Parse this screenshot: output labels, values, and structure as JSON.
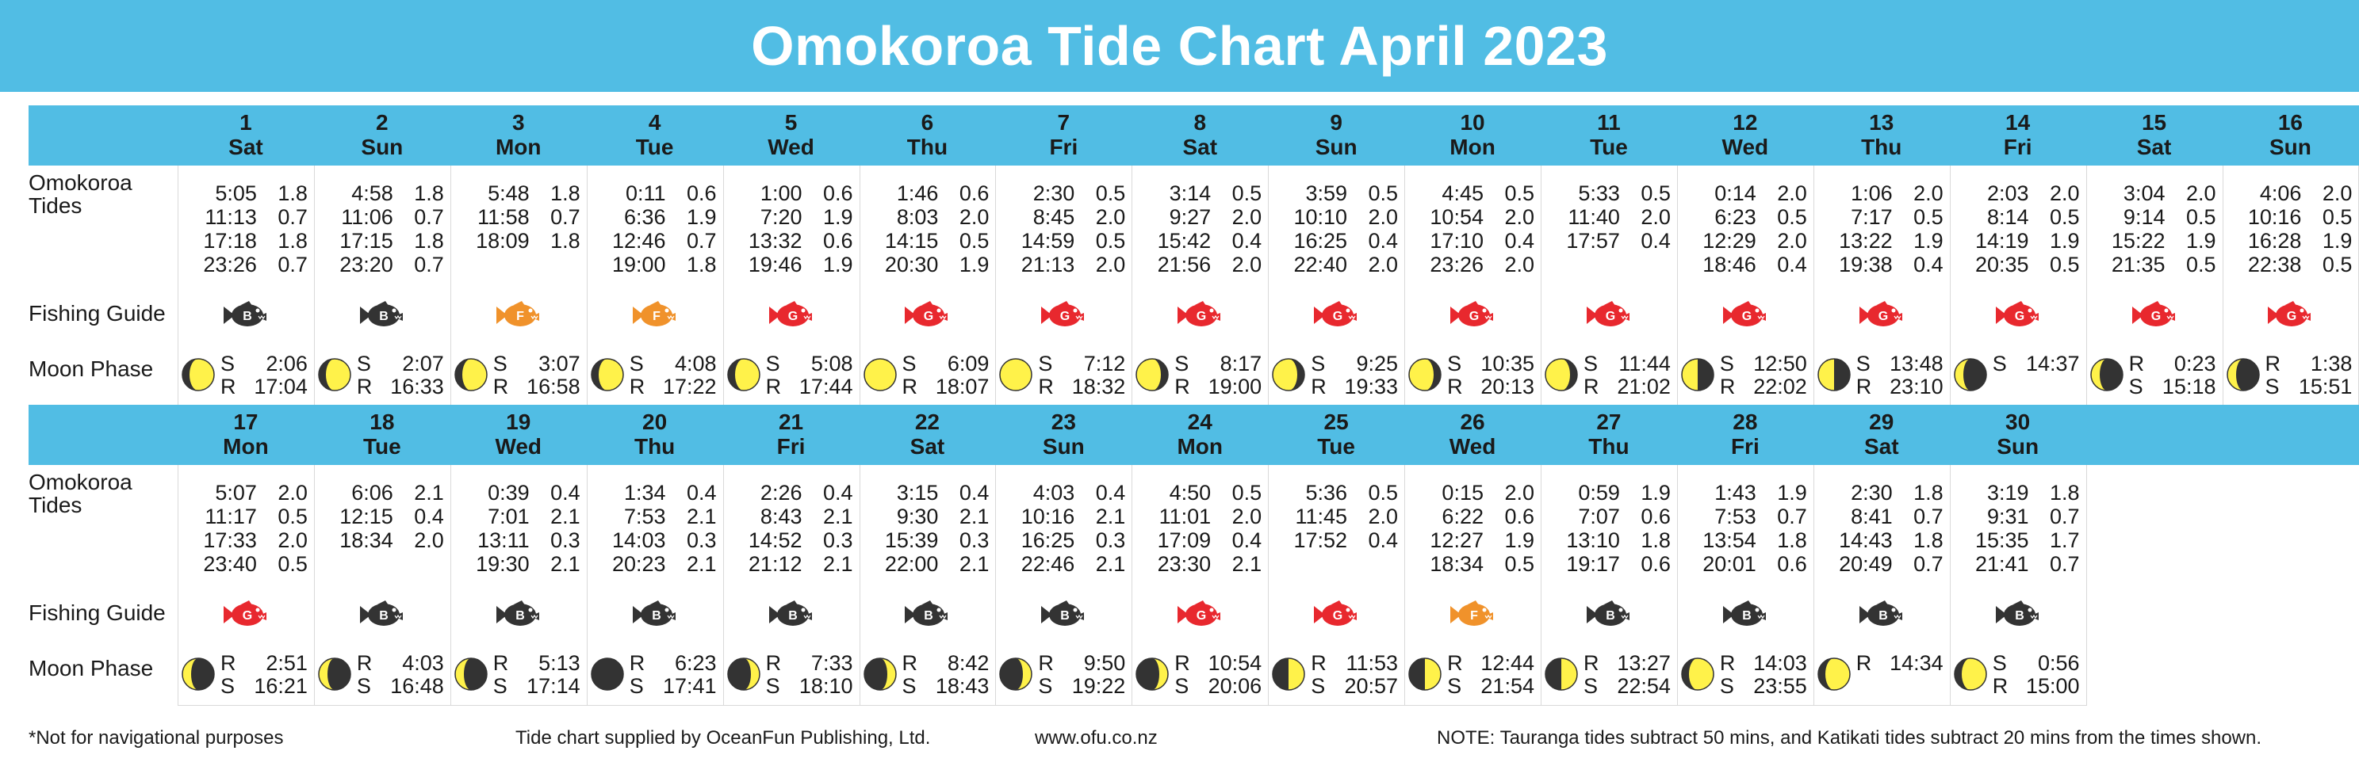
{
  "title": "Omokoroa Tide Chart April 2023",
  "row_labels": {
    "tides": "Omokoroa Tides",
    "fishing": "Fishing Guide",
    "moon": "Moon Phase"
  },
  "fish_colors": {
    "B": "#333333",
    "F": "#f0922b",
    "G": "#e8282e"
  },
  "moon_colors": {
    "light": "#fff24a",
    "dark": "#333333"
  },
  "weeks": [
    [
      {
        "day": "1",
        "dow": "Sat",
        "tides": [
          [
            "5:05",
            "1.8"
          ],
          [
            "11:13",
            "0.7"
          ],
          [
            "17:18",
            "1.8"
          ],
          [
            "23:26",
            "0.7"
          ]
        ],
        "fish": "B",
        "moon": "waxing-gibbous",
        "moon_lines": [
          [
            "S",
            "2:06"
          ],
          [
            "R",
            "17:04"
          ]
        ]
      },
      {
        "day": "2",
        "dow": "Sun",
        "tides": [
          [
            "4:58",
            "1.8"
          ],
          [
            "11:06",
            "0.7"
          ],
          [
            "17:15",
            "1.8"
          ],
          [
            "23:20",
            "0.7"
          ]
        ],
        "fish": "B",
        "moon": "waxing-gibbous",
        "moon_lines": [
          [
            "S",
            "2:07"
          ],
          [
            "R",
            "16:33"
          ]
        ]
      },
      {
        "day": "3",
        "dow": "Mon",
        "tides": [
          [
            "5:48",
            "1.8"
          ],
          [
            "11:58",
            "0.7"
          ],
          [
            "18:09",
            "1.8"
          ]
        ],
        "fish": "F",
        "moon": "waxing-gibbous",
        "moon_lines": [
          [
            "S",
            "3:07"
          ],
          [
            "R",
            "16:58"
          ]
        ]
      },
      {
        "day": "4",
        "dow": "Tue",
        "tides": [
          [
            "0:11",
            "0.6"
          ],
          [
            "6:36",
            "1.9"
          ],
          [
            "12:46",
            "0.7"
          ],
          [
            "19:00",
            "1.8"
          ]
        ],
        "fish": "F",
        "moon": "waxing-gibbous",
        "moon_lines": [
          [
            "S",
            "4:08"
          ],
          [
            "R",
            "17:22"
          ]
        ]
      },
      {
        "day": "5",
        "dow": "Wed",
        "tides": [
          [
            "1:00",
            "0.6"
          ],
          [
            "7:20",
            "1.9"
          ],
          [
            "13:32",
            "0.6"
          ],
          [
            "19:46",
            "1.9"
          ]
        ],
        "fish": "G",
        "moon": "waxing-gibbous",
        "moon_lines": [
          [
            "S",
            "5:08"
          ],
          [
            "R",
            "17:44"
          ]
        ]
      },
      {
        "day": "6",
        "dow": "Thu",
        "tides": [
          [
            "1:46",
            "0.6"
          ],
          [
            "8:03",
            "2.0"
          ],
          [
            "14:15",
            "0.5"
          ],
          [
            "20:30",
            "1.9"
          ]
        ],
        "fish": "G",
        "moon": "full",
        "moon_lines": [
          [
            "S",
            "6:09"
          ],
          [
            "R",
            "18:07"
          ]
        ]
      },
      {
        "day": "7",
        "dow": "Fri",
        "tides": [
          [
            "2:30",
            "0.5"
          ],
          [
            "8:45",
            "2.0"
          ],
          [
            "14:59",
            "0.5"
          ],
          [
            "21:13",
            "2.0"
          ]
        ],
        "fish": "G",
        "moon": "full",
        "moon_lines": [
          [
            "S",
            "7:12"
          ],
          [
            "R",
            "18:32"
          ]
        ]
      },
      {
        "day": "8",
        "dow": "Sat",
        "tides": [
          [
            "3:14",
            "0.5"
          ],
          [
            "9:27",
            "2.0"
          ],
          [
            "15:42",
            "0.4"
          ],
          [
            "21:56",
            "2.0"
          ]
        ],
        "fish": "G",
        "moon": "waning-gibbous",
        "moon_lines": [
          [
            "S",
            "8:17"
          ],
          [
            "R",
            "19:00"
          ]
        ]
      },
      {
        "day": "9",
        "dow": "Sun",
        "tides": [
          [
            "3:59",
            "0.5"
          ],
          [
            "10:10",
            "2.0"
          ],
          [
            "16:25",
            "0.4"
          ],
          [
            "22:40",
            "2.0"
          ]
        ],
        "fish": "G",
        "moon": "waning-gibbous",
        "moon_lines": [
          [
            "S",
            "9:25"
          ],
          [
            "R",
            "19:33"
          ]
        ]
      },
      {
        "day": "10",
        "dow": "Mon",
        "tides": [
          [
            "4:45",
            "0.5"
          ],
          [
            "10:54",
            "2.0"
          ],
          [
            "17:10",
            "0.4"
          ],
          [
            "23:26",
            "2.0"
          ]
        ],
        "fish": "G",
        "moon": "waning-gibbous",
        "moon_lines": [
          [
            "S",
            "10:35"
          ],
          [
            "R",
            "20:13"
          ]
        ]
      },
      {
        "day": "11",
        "dow": "Tue",
        "tides": [
          [
            "5:33",
            "0.5"
          ],
          [
            "11:40",
            "2.0"
          ],
          [
            "17:57",
            "0.4"
          ]
        ],
        "fish": "G",
        "moon": "waning-gibbous",
        "moon_lines": [
          [
            "S",
            "11:44"
          ],
          [
            "R",
            "21:02"
          ]
        ]
      },
      {
        "day": "12",
        "dow": "Wed",
        "tides": [
          [
            "0:14",
            "2.0"
          ],
          [
            "6:23",
            "0.5"
          ],
          [
            "12:29",
            "2.0"
          ],
          [
            "18:46",
            "0.4"
          ]
        ],
        "fish": "G",
        "moon": "last-quarter",
        "moon_lines": [
          [
            "S",
            "12:50"
          ],
          [
            "R",
            "22:02"
          ]
        ]
      },
      {
        "day": "13",
        "dow": "Thu",
        "tides": [
          [
            "1:06",
            "2.0"
          ],
          [
            "7:17",
            "0.5"
          ],
          [
            "13:22",
            "1.9"
          ],
          [
            "19:38",
            "0.4"
          ]
        ],
        "fish": "G",
        "moon": "last-quarter",
        "moon_lines": [
          [
            "S",
            "13:48"
          ],
          [
            "R",
            "23:10"
          ]
        ]
      },
      {
        "day": "14",
        "dow": "Fri",
        "tides": [
          [
            "2:03",
            "2.0"
          ],
          [
            "8:14",
            "0.5"
          ],
          [
            "14:19",
            "1.9"
          ],
          [
            "20:35",
            "0.5"
          ]
        ],
        "fish": "G",
        "moon": "waning-crescent",
        "moon_lines": [
          [
            "S",
            "14:37"
          ]
        ]
      },
      {
        "day": "15",
        "dow": "Sat",
        "tides": [
          [
            "3:04",
            "2.0"
          ],
          [
            "9:14",
            "0.5"
          ],
          [
            "15:22",
            "1.9"
          ],
          [
            "21:35",
            "0.5"
          ]
        ],
        "fish": "G",
        "moon": "waning-crescent",
        "moon_lines": [
          [
            "R",
            "0:23"
          ],
          [
            "S",
            "15:18"
          ]
        ]
      },
      {
        "day": "16",
        "dow": "Sun",
        "tides": [
          [
            "4:06",
            "2.0"
          ],
          [
            "10:16",
            "0.5"
          ],
          [
            "16:28",
            "1.9"
          ],
          [
            "22:38",
            "0.5"
          ]
        ],
        "fish": "G",
        "moon": "waning-crescent",
        "moon_lines": [
          [
            "R",
            "1:38"
          ],
          [
            "S",
            "15:51"
          ]
        ]
      }
    ],
    [
      {
        "day": "17",
        "dow": "Mon",
        "tides": [
          [
            "5:07",
            "2.0"
          ],
          [
            "11:17",
            "0.5"
          ],
          [
            "17:33",
            "2.0"
          ],
          [
            "23:40",
            "0.5"
          ]
        ],
        "fish": "G",
        "moon": "waning-crescent",
        "moon_lines": [
          [
            "R",
            "2:51"
          ],
          [
            "S",
            "16:21"
          ]
        ]
      },
      {
        "day": "18",
        "dow": "Tue",
        "tides": [
          [
            "6:06",
            "2.1"
          ],
          [
            "12:15",
            "0.4"
          ],
          [
            "18:34",
            "2.0"
          ]
        ],
        "fish": "B",
        "moon": "waning-crescent",
        "moon_lines": [
          [
            "R",
            "4:03"
          ],
          [
            "S",
            "16:48"
          ]
        ]
      },
      {
        "day": "19",
        "dow": "Wed",
        "tides": [
          [
            "0:39",
            "0.4"
          ],
          [
            "7:01",
            "2.1"
          ],
          [
            "13:11",
            "0.3"
          ],
          [
            "19:30",
            "2.1"
          ]
        ],
        "fish": "B",
        "moon": "waning-crescent",
        "moon_lines": [
          [
            "R",
            "5:13"
          ],
          [
            "S",
            "17:14"
          ]
        ]
      },
      {
        "day": "20",
        "dow": "Thu",
        "tides": [
          [
            "1:34",
            "0.4"
          ],
          [
            "7:53",
            "2.1"
          ],
          [
            "14:03",
            "0.3"
          ],
          [
            "20:23",
            "2.1"
          ]
        ],
        "fish": "B",
        "moon": "new",
        "moon_lines": [
          [
            "R",
            "6:23"
          ],
          [
            "S",
            "17:41"
          ]
        ]
      },
      {
        "day": "21",
        "dow": "Fri",
        "tides": [
          [
            "2:26",
            "0.4"
          ],
          [
            "8:43",
            "2.1"
          ],
          [
            "14:52",
            "0.3"
          ],
          [
            "21:12",
            "2.1"
          ]
        ],
        "fish": "B",
        "moon": "waxing-crescent",
        "moon_lines": [
          [
            "R",
            "7:33"
          ],
          [
            "S",
            "18:10"
          ]
        ]
      },
      {
        "day": "22",
        "dow": "Sat",
        "tides": [
          [
            "3:15",
            "0.4"
          ],
          [
            "9:30",
            "2.1"
          ],
          [
            "15:39",
            "0.3"
          ],
          [
            "22:00",
            "2.1"
          ]
        ],
        "fish": "B",
        "moon": "waxing-crescent",
        "moon_lines": [
          [
            "R",
            "8:42"
          ],
          [
            "S",
            "18:43"
          ]
        ]
      },
      {
        "day": "23",
        "dow": "Sun",
        "tides": [
          [
            "4:03",
            "0.4"
          ],
          [
            "10:16",
            "2.1"
          ],
          [
            "16:25",
            "0.3"
          ],
          [
            "22:46",
            "2.1"
          ]
        ],
        "fish": "B",
        "moon": "waxing-crescent",
        "moon_lines": [
          [
            "R",
            "9:50"
          ],
          [
            "S",
            "19:22"
          ]
        ]
      },
      {
        "day": "24",
        "dow": "Mon",
        "tides": [
          [
            "4:50",
            "0.5"
          ],
          [
            "11:01",
            "2.0"
          ],
          [
            "17:09",
            "0.4"
          ],
          [
            "23:30",
            "2.1"
          ]
        ],
        "fish": "G",
        "moon": "waxing-crescent",
        "moon_lines": [
          [
            "R",
            "10:54"
          ],
          [
            "S",
            "20:06"
          ]
        ]
      },
      {
        "day": "25",
        "dow": "Tue",
        "tides": [
          [
            "5:36",
            "0.5"
          ],
          [
            "11:45",
            "2.0"
          ],
          [
            "17:52",
            "0.4"
          ]
        ],
        "fish": "G",
        "moon": "first-quarter",
        "moon_lines": [
          [
            "R",
            "11:53"
          ],
          [
            "S",
            "20:57"
          ]
        ]
      },
      {
        "day": "26",
        "dow": "Wed",
        "tides": [
          [
            "0:15",
            "2.0"
          ],
          [
            "6:22",
            "0.6"
          ],
          [
            "12:27",
            "1.9"
          ],
          [
            "18:34",
            "0.5"
          ]
        ],
        "fish": "F",
        "moon": "first-quarter",
        "moon_lines": [
          [
            "R",
            "12:44"
          ],
          [
            "S",
            "21:54"
          ]
        ]
      },
      {
        "day": "27",
        "dow": "Thu",
        "tides": [
          [
            "0:59",
            "1.9"
          ],
          [
            "7:07",
            "0.6"
          ],
          [
            "13:10",
            "1.8"
          ],
          [
            "19:17",
            "0.6"
          ]
        ],
        "fish": "B",
        "moon": "first-quarter",
        "moon_lines": [
          [
            "R",
            "13:27"
          ],
          [
            "S",
            "22:54"
          ]
        ]
      },
      {
        "day": "28",
        "dow": "Fri",
        "tides": [
          [
            "1:43",
            "1.9"
          ],
          [
            "7:53",
            "0.7"
          ],
          [
            "13:54",
            "1.8"
          ],
          [
            "20:01",
            "0.6"
          ]
        ],
        "fish": "B",
        "moon": "waxing-gibbous",
        "moon_lines": [
          [
            "R",
            "14:03"
          ],
          [
            "S",
            "23:55"
          ]
        ]
      },
      {
        "day": "29",
        "dow": "Sat",
        "tides": [
          [
            "2:30",
            "1.8"
          ],
          [
            "8:41",
            "0.7"
          ],
          [
            "14:43",
            "1.8"
          ],
          [
            "20:49",
            "0.7"
          ]
        ],
        "fish": "B",
        "moon": "waxing-gibbous",
        "moon_lines": [
          [
            "R",
            "14:34"
          ]
        ]
      },
      {
        "day": "30",
        "dow": "Sun",
        "tides": [
          [
            "3:19",
            "1.8"
          ],
          [
            "9:31",
            "0.7"
          ],
          [
            "15:35",
            "1.7"
          ],
          [
            "21:41",
            "0.7"
          ]
        ],
        "fish": "B",
        "moon": "waxing-gibbous",
        "moon_lines": [
          [
            "S",
            "0:56"
          ],
          [
            "R",
            "15:00"
          ]
        ]
      }
    ]
  ],
  "footer": {
    "disclaimer": "*Not for navigational purposes",
    "supplier": "Tide chart supplied by OceanFun Publishing, Ltd.",
    "website": "www.ofu.co.nz",
    "note": "NOTE: Tauranga tides subtract 50 mins, and Katikati tides subtract 20 mins from the times shown."
  }
}
